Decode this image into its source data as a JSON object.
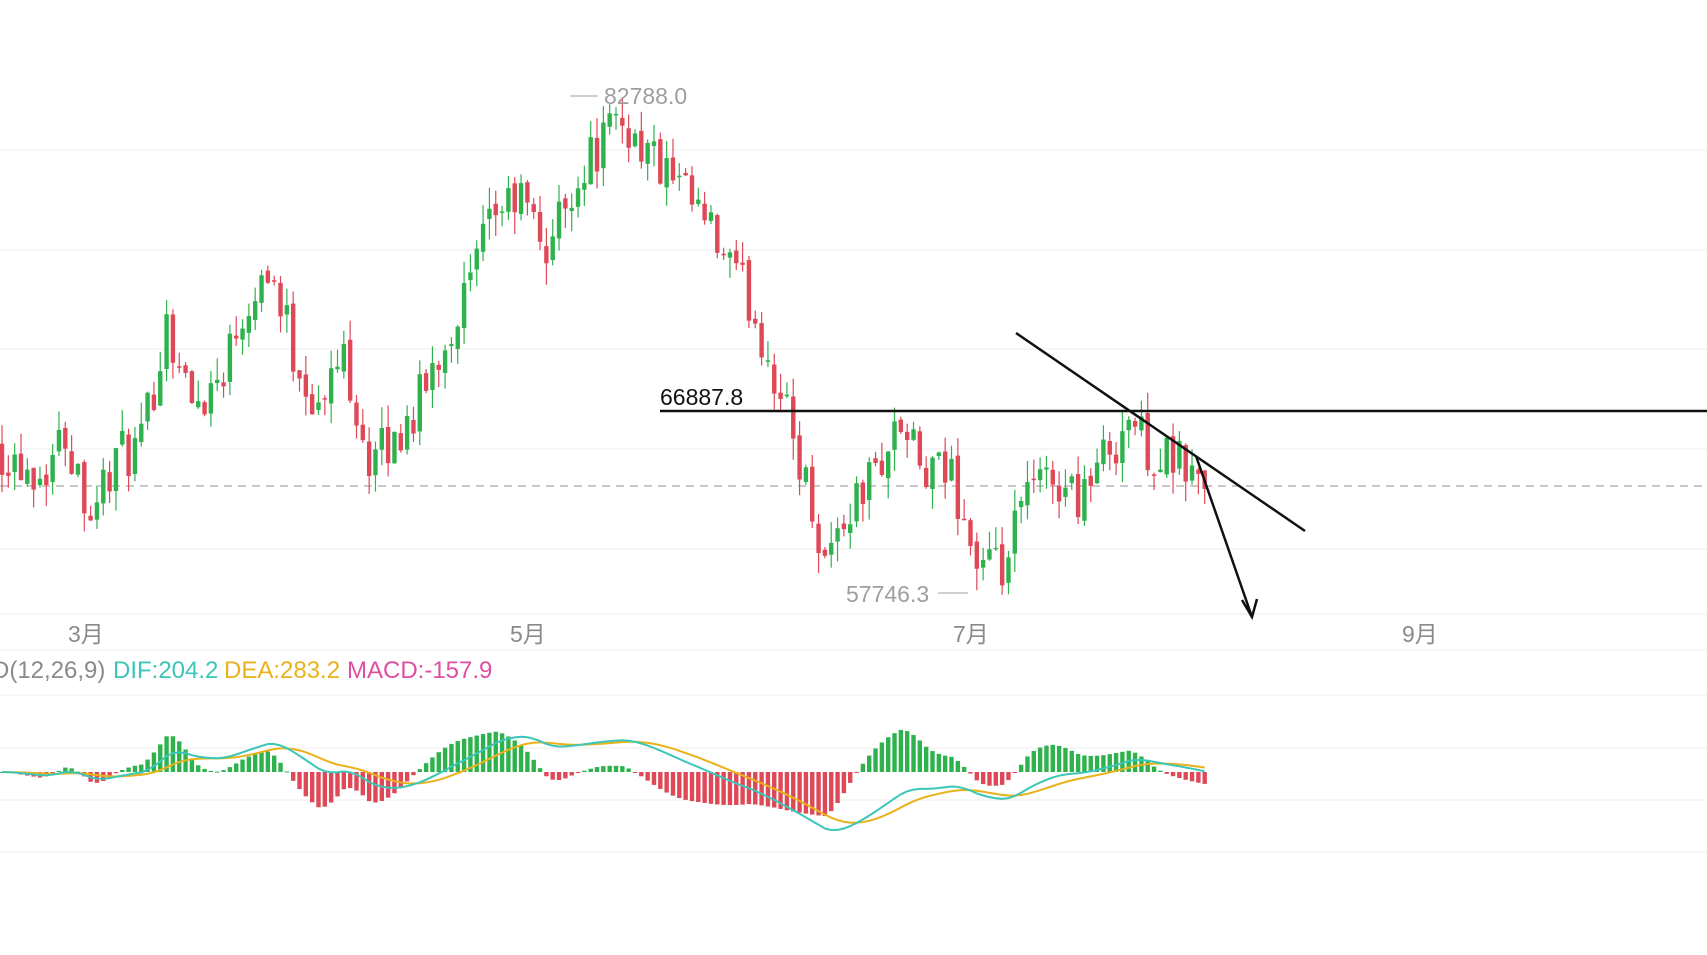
{
  "colors": {
    "up": "#2fb24e",
    "down": "#de4857",
    "grid": "#eeeeee",
    "dashed": "#b5b5b5",
    "annotation": "#111111",
    "dif": "#3cc6b8",
    "dea": "#e9b21a",
    "macd": "#de4fa0",
    "label_gray": "#9e9e9e"
  },
  "price_panel": {
    "high_label": "82788.0",
    "low_label": "57746.3",
    "level_label": "66887.8",
    "x_labels": [
      "3月",
      "5月",
      "7月",
      "9月"
    ]
  },
  "macd_panel": {
    "params_label": "D(12,26,9)",
    "dif_label": "DIF:204.2",
    "dea_label": "DEA:283.2",
    "macd_label": "MACD:-157.9"
  },
  "chart_data": {
    "type": "candlestick",
    "price_ylim": [
      55000,
      86000
    ],
    "marked_high": 82788.0,
    "marked_low": 57746.3,
    "horizontal_level": 66887.8,
    "current_price_dashed": 63600,
    "x_axis_labels": [
      "3月",
      "5月",
      "7月",
      "9月"
    ],
    "close_path": [
      [
        0,
        65000
      ],
      [
        6,
        63800
      ],
      [
        10,
        65800
      ],
      [
        14,
        62000
      ],
      [
        18,
        64500
      ],
      [
        22,
        65000
      ],
      [
        26,
        71500
      ],
      [
        30,
        67200
      ],
      [
        34,
        68500
      ],
      [
        38,
        72000
      ],
      [
        42,
        74400
      ],
      [
        46,
        70000
      ],
      [
        50,
        66800
      ],
      [
        54,
        70000
      ],
      [
        58,
        64300
      ],
      [
        62,
        65300
      ],
      [
        66,
        67500
      ],
      [
        70,
        70500
      ],
      [
        74,
        73300
      ],
      [
        78,
        77000
      ],
      [
        82,
        77600
      ],
      [
        86,
        75000
      ],
      [
        90,
        78200
      ],
      [
        94,
        80200
      ],
      [
        98,
        81500
      ],
      [
        102,
        80000
      ],
      [
        106,
        78300
      ],
      [
        110,
        76800
      ],
      [
        114,
        74600
      ],
      [
        118,
        72500
      ],
      [
        122,
        68800
      ],
      [
        126,
        64500
      ],
      [
        130,
        59600
      ],
      [
        134,
        62000
      ],
      [
        138,
        64000
      ],
      [
        142,
        66200
      ],
      [
        146,
        63400
      ],
      [
        150,
        63800
      ],
      [
        154,
        59200
      ],
      [
        158,
        58600
      ],
      [
        162,
        62800
      ],
      [
        166,
        63500
      ],
      [
        170,
        62800
      ],
      [
        174,
        64500
      ],
      [
        178,
        66600
      ],
      [
        182,
        64600
      ],
      [
        186,
        64200
      ],
      [
        190,
        63200
      ]
    ],
    "indicator": {
      "name": "MACD",
      "params": [
        12,
        26,
        9
      ],
      "dif": 204.2,
      "dea": 283.2,
      "macd": -157.9,
      "series": [
        {
          "name": "DIF",
          "color": "#3cc6b8"
        },
        {
          "name": "DEA",
          "color": "#e9b21a"
        },
        {
          "name": "MACD",
          "color": "#de4fa0"
        }
      ]
    }
  }
}
